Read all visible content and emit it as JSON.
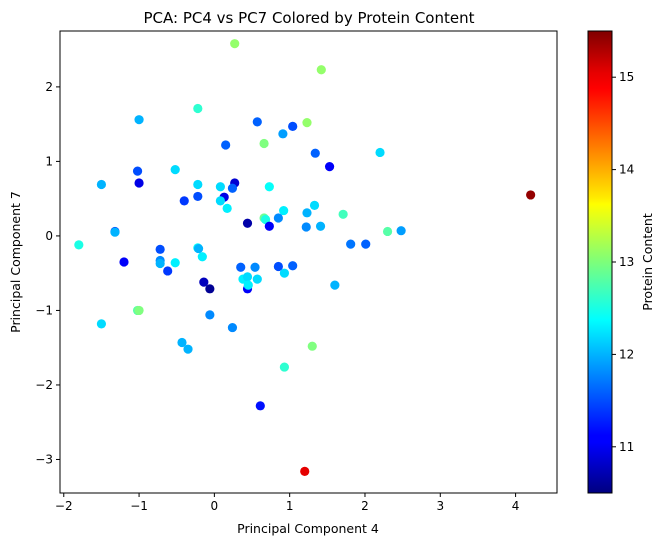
{
  "chart_data": {
    "type": "scatter",
    "title": "PCA: PC4 vs PC7 Colored by Protein Content",
    "xlabel": "Principal Component 4",
    "ylabel": "Principal Component 7",
    "colorbar_label": "Protein Content",
    "xlim": [
      -2.05,
      4.55
    ],
    "ylim": [
      -3.45,
      2.75
    ],
    "clim": [
      10.5,
      15.5
    ],
    "xticks": [
      -2,
      -1,
      0,
      1,
      2,
      3,
      4
    ],
    "yticks": [
      -3,
      -2,
      -1,
      0,
      1,
      2
    ],
    "cticks": [
      11,
      12,
      13,
      14,
      15
    ],
    "colormap": "jet",
    "grid": false,
    "points": [
      {
        "x": 0.27,
        "y": 2.58,
        "c": 13.1
      },
      {
        "x": 1.42,
        "y": 2.23,
        "c": 13.1
      },
      {
        "x": -0.22,
        "y": 1.71,
        "c": 12.6
      },
      {
        "x": -1.0,
        "y": 1.56,
        "c": 12.0
      },
      {
        "x": 1.23,
        "y": 1.52,
        "c": 13.1
      },
      {
        "x": 0.57,
        "y": 1.53,
        "c": 11.6
      },
      {
        "x": 1.04,
        "y": 1.47,
        "c": 11.5
      },
      {
        "x": 0.91,
        "y": 1.37,
        "c": 11.9
      },
      {
        "x": 0.66,
        "y": 1.24,
        "c": 13.0
      },
      {
        "x": 0.15,
        "y": 1.22,
        "c": 11.6
      },
      {
        "x": 2.2,
        "y": 1.12,
        "c": 12.2
      },
      {
        "x": 1.34,
        "y": 1.11,
        "c": 11.6
      },
      {
        "x": 1.53,
        "y": 0.93,
        "c": 11.1
      },
      {
        "x": -0.52,
        "y": 0.89,
        "c": 12.2
      },
      {
        "x": -1.02,
        "y": 0.87,
        "c": 11.5
      },
      {
        "x": -1.5,
        "y": 0.69,
        "c": 12.0
      },
      {
        "x": -1.0,
        "y": 0.71,
        "c": 11.0
      },
      {
        "x": 0.27,
        "y": 0.71,
        "c": 10.9
      },
      {
        "x": -0.22,
        "y": 0.69,
        "c": 12.2
      },
      {
        "x": 0.08,
        "y": 0.66,
        "c": 12.2
      },
      {
        "x": 0.73,
        "y": 0.66,
        "c": 12.4
      },
      {
        "x": 0.24,
        "y": 0.64,
        "c": 11.6
      },
      {
        "x": -0.22,
        "y": 0.53,
        "c": 11.5
      },
      {
        "x": 0.13,
        "y": 0.52,
        "c": 11.0
      },
      {
        "x": 0.08,
        "y": 0.47,
        "c": 12.2
      },
      {
        "x": -0.4,
        "y": 0.47,
        "c": 11.4
      },
      {
        "x": 1.33,
        "y": 0.41,
        "c": 12.2
      },
      {
        "x": 0.17,
        "y": 0.37,
        "c": 12.3
      },
      {
        "x": 0.92,
        "y": 0.34,
        "c": 12.3
      },
      {
        "x": 1.23,
        "y": 0.31,
        "c": 12.0
      },
      {
        "x": 1.71,
        "y": 0.29,
        "c": 12.7
      },
      {
        "x": 0.85,
        "y": 0.24,
        "c": 11.8
      },
      {
        "x": 0.66,
        "y": 0.24,
        "c": 12.9
      },
      {
        "x": 0.68,
        "y": 0.22,
        "c": 12.5
      },
      {
        "x": 0.44,
        "y": 0.17,
        "c": 10.7
      },
      {
        "x": 0.73,
        "y": 0.13,
        "c": 11.1
      },
      {
        "x": 1.22,
        "y": 0.12,
        "c": 11.8
      },
      {
        "x": 1.41,
        "y": 0.13,
        "c": 12.0
      },
      {
        "x": 2.3,
        "y": 0.06,
        "c": 12.8
      },
      {
        "x": 2.48,
        "y": 0.07,
        "c": 11.9
      },
      {
        "x": -1.32,
        "y": 0.06,
        "c": 11.5
      },
      {
        "x": -1.32,
        "y": 0.05,
        "c": 12.0
      },
      {
        "x": -1.8,
        "y": -0.12,
        "c": 12.5
      },
      {
        "x": 1.81,
        "y": -0.11,
        "c": 11.7
      },
      {
        "x": 2.01,
        "y": -0.11,
        "c": 11.6
      },
      {
        "x": -0.72,
        "y": -0.18,
        "c": 11.5
      },
      {
        "x": -0.22,
        "y": -0.16,
        "c": 12.4
      },
      {
        "x": -0.21,
        "y": -0.17,
        "c": 12.0
      },
      {
        "x": -0.16,
        "y": -0.28,
        "c": 12.3
      },
      {
        "x": -1.2,
        "y": -0.35,
        "c": 11.1
      },
      {
        "x": -0.72,
        "y": -0.33,
        "c": 11.8
      },
      {
        "x": -0.72,
        "y": -0.37,
        "c": 12.0
      },
      {
        "x": -0.52,
        "y": -0.36,
        "c": 12.3
      },
      {
        "x": -0.62,
        "y": -0.47,
        "c": 11.4
      },
      {
        "x": 0.35,
        "y": -0.42,
        "c": 11.6
      },
      {
        "x": 0.54,
        "y": -0.42,
        "c": 11.8
      },
      {
        "x": 0.85,
        "y": -0.41,
        "c": 11.5
      },
      {
        "x": 1.04,
        "y": -0.4,
        "c": 11.6
      },
      {
        "x": 0.93,
        "y": -0.5,
        "c": 12.2
      },
      {
        "x": 0.38,
        "y": -0.58,
        "c": 12.3
      },
      {
        "x": 0.44,
        "y": -0.55,
        "c": 12.2
      },
      {
        "x": 0.57,
        "y": -0.58,
        "c": 12.2
      },
      {
        "x": -0.14,
        "y": -0.62,
        "c": 10.8
      },
      {
        "x": -0.06,
        "y": -0.71,
        "c": 10.6
      },
      {
        "x": 0.44,
        "y": -0.71,
        "c": 11.1
      },
      {
        "x": 0.45,
        "y": -0.66,
        "c": 12.3
      },
      {
        "x": 1.6,
        "y": -0.66,
        "c": 12.0
      },
      {
        "x": -1.02,
        "y": -1.0,
        "c": 12.8
      },
      {
        "x": -1.0,
        "y": -1.0,
        "c": 13.0
      },
      {
        "x": -0.06,
        "y": -1.06,
        "c": 11.8
      },
      {
        "x": -1.5,
        "y": -1.18,
        "c": 12.2
      },
      {
        "x": 0.24,
        "y": -1.23,
        "c": 11.8
      },
      {
        "x": -0.43,
        "y": -1.43,
        "c": 12.0
      },
      {
        "x": -0.35,
        "y": -1.52,
        "c": 12.0
      },
      {
        "x": 1.3,
        "y": -1.48,
        "c": 13.0
      },
      {
        "x": 0.93,
        "y": -1.76,
        "c": 12.6
      },
      {
        "x": 0.61,
        "y": -2.28,
        "c": 11.2
      },
      {
        "x": 1.2,
        "y": -3.16,
        "c": 15.0
      },
      {
        "x": 4.2,
        "y": 0.55,
        "c": 15.4
      }
    ]
  }
}
